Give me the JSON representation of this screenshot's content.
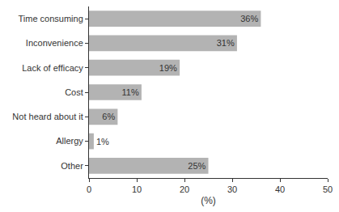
{
  "chart_data": {
    "type": "bar",
    "orientation": "horizontal",
    "categories": [
      "Time consuming",
      "Inconvenience",
      "Lack of efficacy",
      "Cost",
      "Not heard about it",
      "Allergy",
      "Other"
    ],
    "values": [
      36,
      31,
      19,
      11,
      6,
      1,
      25
    ],
    "value_labels": [
      "36%",
      "31%",
      "19%",
      "11%",
      "6%",
      "1%",
      "25%"
    ],
    "data_labels": true,
    "color": "#b3b3b3",
    "xlabel": "(%)",
    "xlim": [
      0,
      50
    ],
    "xticks": [
      0,
      10,
      20,
      30,
      40,
      50
    ],
    "grid": false
  }
}
